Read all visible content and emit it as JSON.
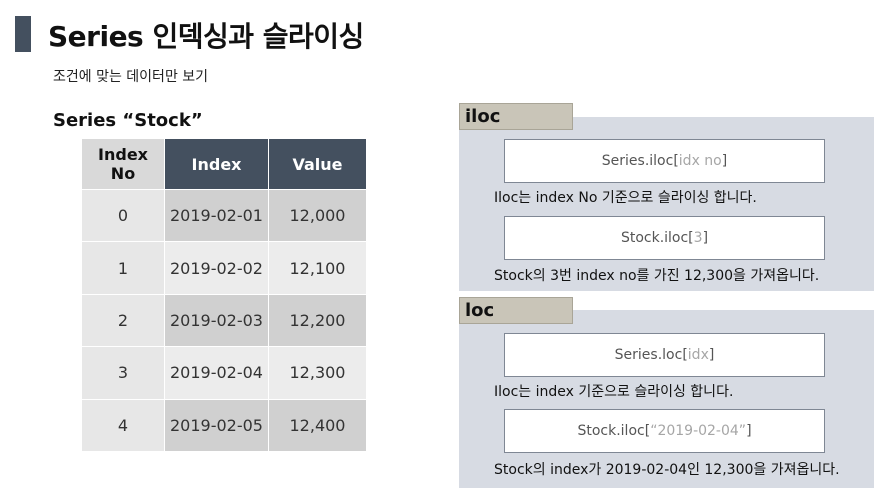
{
  "header": {
    "title": "Series 인덱싱과 슬라이싱",
    "subtitle": "조건에 맞는 데이터만 보기"
  },
  "left": {
    "series_label": "Series “Stock”",
    "table": {
      "headers": [
        "Index\nNo",
        "Index",
        "Value"
      ],
      "rows": [
        [
          "0",
          "2019-02-01",
          "12,000"
        ],
        [
          "1",
          "2019-02-02",
          "12,100"
        ],
        [
          "2",
          "2019-02-03",
          "12,200"
        ],
        [
          "3",
          "2019-02-04",
          "12,300"
        ],
        [
          "4",
          "2019-02-05",
          "12,400"
        ]
      ]
    }
  },
  "iloc": {
    "label": "iloc",
    "code1": {
      "obj": "Series",
      "method": ".iloc[",
      "arg": "idx no",
      "close": "]"
    },
    "desc1": "Iloc는 index No 기준으로 슬라이싱 합니다.",
    "code2": {
      "obj": "Stock",
      "method": ".iloc[",
      "arg": "3",
      "close": "]"
    },
    "desc2": "Stock의 3번 index no를 가진 12,300을 가져옵니다."
  },
  "loc": {
    "label": "loc",
    "code1": {
      "obj": "Series",
      "method": ".loc[",
      "arg": "idx",
      "close": "]"
    },
    "desc1": "Iloc는 index 기준으로 슬라이싱 합니다.",
    "code2": {
      "obj": "Stock",
      "method": ".iloc[",
      "arg": "“2019-02-04”",
      "close": "]"
    },
    "desc2": "Stock의 index가 2019-02-04인 12,300을 가져옵니다."
  },
  "colors": {
    "header_dark": "#44505f",
    "panel_bg": "#d7dbe3",
    "tab_bg": "#c9c5b8",
    "code_dim": "#a6a6a6"
  }
}
